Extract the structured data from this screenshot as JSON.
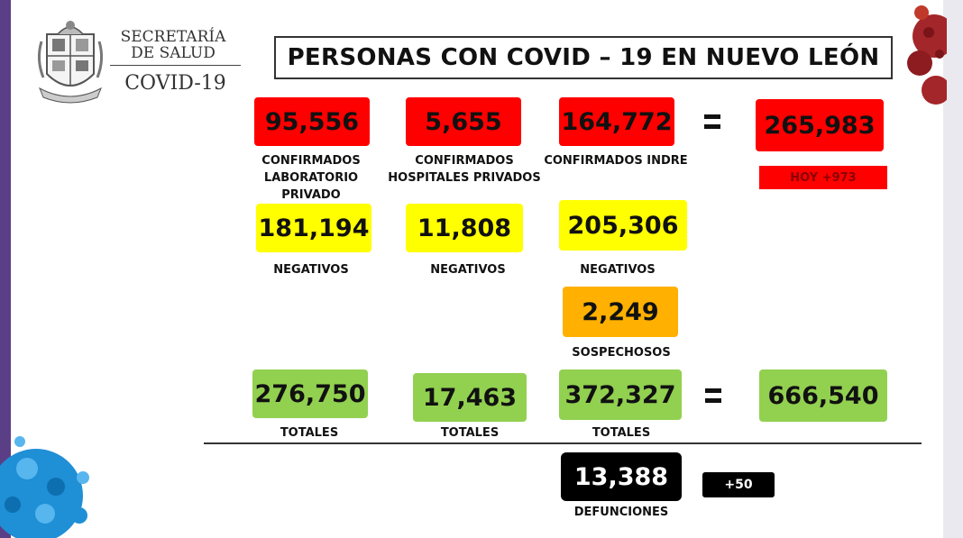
{
  "header": {
    "secretaria_line1": "SECRETARÍA",
    "secretaria_line2": "DE SALUD",
    "covid": "COVID-19",
    "title": "PERSONAS CON COVID – 19 EN NUEVO LEÓN"
  },
  "confirmados": {
    "lab_privado": "95,556",
    "hosp_privados": "5,655",
    "indre": "164,772",
    "total": "265,983",
    "hoy": "HOY +973",
    "label_lab": "CONFIRMADOS\nLABORATORIO PRIVADO",
    "label_hosp": "CONFIRMADOS\nHOSPITALES PRIVADOS",
    "label_indre": "CONFIRMADOS INDRE"
  },
  "negativos": {
    "lab": "181,194",
    "hosp": "11,808",
    "indre": "205,306",
    "label": "NEGATIVOS"
  },
  "sospechosos": {
    "value": "2,249",
    "label": "SOSPECHOSOS"
  },
  "totales": {
    "lab": "276,750",
    "hosp": "17,463",
    "indre": "372,327",
    "grand": "666,540",
    "label": "TOTALES"
  },
  "defunciones": {
    "value": "13,388",
    "delta": "+50",
    "label": "DEFUNCIONES"
  },
  "colors": {
    "confirmed": "#ff0000",
    "negative": "#ffff00",
    "suspected": "#ffb000",
    "total": "#92d050",
    "deaths": "#000000",
    "frame": "#5b3f86"
  }
}
